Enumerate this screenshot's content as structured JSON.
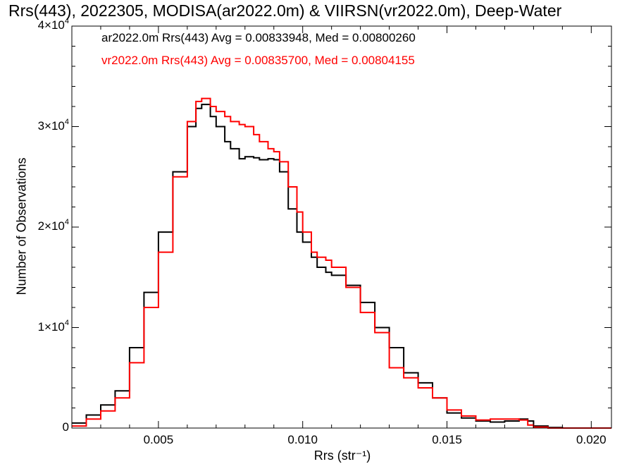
{
  "chart_data": {
    "type": "line",
    "title": "Rrs(443), 2022305, MODISA(ar2022.0m) & VIIRSN(vr2022.0m), Deep-Water",
    "xlabel": "Rrs (str⁻¹)",
    "ylabel": "Number of Observations",
    "xlim": [
      0.002,
      0.0207
    ],
    "ylim": [
      0,
      40000
    ],
    "x_ticks": [
      {
        "value": 0.005,
        "label": "0.005"
      },
      {
        "value": 0.01,
        "label": "0.010"
      },
      {
        "value": 0.015,
        "label": "0.015"
      },
      {
        "value": 0.02,
        "label": "0.020"
      }
    ],
    "y_ticks": [
      {
        "value": 0,
        "mant": "0",
        "exp": ""
      },
      {
        "value": 10000,
        "mant": "1×10",
        "exp": "4"
      },
      {
        "value": 20000,
        "mant": "2×10",
        "exp": "4"
      },
      {
        "value": 30000,
        "mant": "3×10",
        "exp": "4"
      },
      {
        "value": 40000,
        "mant": "4×10",
        "exp": "4"
      }
    ],
    "legend": [
      {
        "text": "ar2022.0m Rrs(443) Avg = 0.00833948, Med = 0.00800260",
        "color": "#000000"
      },
      {
        "text": "vr2022.0m Rrs(443) Avg = 0.00835700, Med = 0.00804155",
        "color": "#ff0000"
      }
    ],
    "legend_position": "top-left",
    "series": [
      {
        "color": "#000000",
        "points": [
          [
            0.002,
            500
          ],
          [
            0.0025,
            1300
          ],
          [
            0.003,
            2300
          ],
          [
            0.0035,
            3700
          ],
          [
            0.004,
            8000
          ],
          [
            0.0045,
            13500
          ],
          [
            0.005,
            19500
          ],
          [
            0.0055,
            25500
          ],
          [
            0.006,
            30000
          ],
          [
            0.0063,
            31800
          ],
          [
            0.0065,
            32200
          ],
          [
            0.0068,
            31000
          ],
          [
            0.007,
            30000
          ],
          [
            0.0073,
            28500
          ],
          [
            0.0075,
            27800
          ],
          [
            0.0078,
            26800
          ],
          [
            0.008,
            27000
          ],
          [
            0.0083,
            26900
          ],
          [
            0.0085,
            26700
          ],
          [
            0.0088,
            26800
          ],
          [
            0.009,
            26700
          ],
          [
            0.0092,
            25500
          ],
          [
            0.0095,
            21800
          ],
          [
            0.0098,
            19500
          ],
          [
            0.01,
            18500
          ],
          [
            0.0103,
            17000
          ],
          [
            0.0105,
            16000
          ],
          [
            0.0108,
            15500
          ],
          [
            0.011,
            15200
          ],
          [
            0.0115,
            14200
          ],
          [
            0.012,
            12500
          ],
          [
            0.0125,
            10000
          ],
          [
            0.013,
            8000
          ],
          [
            0.0135,
            5500
          ],
          [
            0.014,
            4500
          ],
          [
            0.0145,
            3000
          ],
          [
            0.015,
            1500
          ],
          [
            0.0155,
            1000
          ],
          [
            0.016,
            700
          ],
          [
            0.0165,
            600
          ],
          [
            0.017,
            700
          ],
          [
            0.0175,
            900
          ],
          [
            0.0178,
            700
          ],
          [
            0.018,
            200
          ],
          [
            0.0185,
            50
          ],
          [
            0.019,
            0
          ],
          [
            0.0207,
            0
          ]
        ]
      },
      {
        "color": "#ff0000",
        "points": [
          [
            0.002,
            200
          ],
          [
            0.0025,
            900
          ],
          [
            0.003,
            1700
          ],
          [
            0.0035,
            3000
          ],
          [
            0.004,
            6500
          ],
          [
            0.0045,
            12000
          ],
          [
            0.005,
            17500
          ],
          [
            0.0055,
            25000
          ],
          [
            0.006,
            30500
          ],
          [
            0.0063,
            32500
          ],
          [
            0.0065,
            32800
          ],
          [
            0.0068,
            32000
          ],
          [
            0.007,
            31500
          ],
          [
            0.0073,
            31000
          ],
          [
            0.0075,
            30500
          ],
          [
            0.0078,
            30200
          ],
          [
            0.008,
            30000
          ],
          [
            0.0083,
            29200
          ],
          [
            0.0085,
            28500
          ],
          [
            0.0088,
            27800
          ],
          [
            0.009,
            27500
          ],
          [
            0.0092,
            26500
          ],
          [
            0.0095,
            24000
          ],
          [
            0.0098,
            21500
          ],
          [
            0.01,
            19500
          ],
          [
            0.0103,
            17500
          ],
          [
            0.0105,
            17000
          ],
          [
            0.0108,
            16700
          ],
          [
            0.011,
            16000
          ],
          [
            0.0115,
            14000
          ],
          [
            0.012,
            11500
          ],
          [
            0.0125,
            9500
          ],
          [
            0.013,
            6000
          ],
          [
            0.0135,
            5000
          ],
          [
            0.014,
            4000
          ],
          [
            0.0145,
            3000
          ],
          [
            0.015,
            1800
          ],
          [
            0.0155,
            1200
          ],
          [
            0.016,
            800
          ],
          [
            0.0165,
            900
          ],
          [
            0.017,
            900
          ],
          [
            0.0175,
            800
          ],
          [
            0.0178,
            300
          ],
          [
            0.018,
            100
          ],
          [
            0.0185,
            0
          ],
          [
            0.0207,
            0
          ]
        ]
      }
    ]
  }
}
